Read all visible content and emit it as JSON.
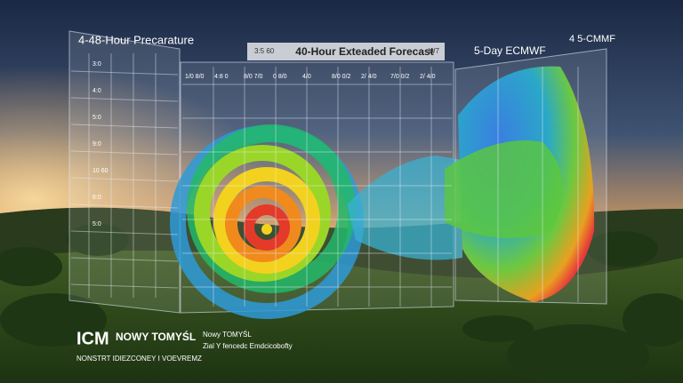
{
  "panels": [
    {
      "title": "4-48-Hour Precarature",
      "row_labels": [
        "3:0",
        "4:0",
        "5:0",
        "9:0",
        "10 60",
        "6:0",
        "5:0"
      ]
    },
    {
      "header_left": "3:5 60",
      "title": "40-Hour Exteaded Forecast",
      "header_right": "W7",
      "column_labels": [
        "1/0 8/0",
        "4:8 0",
        "8/0 7/0",
        "0 8/0",
        "4/0",
        "8/0 0/2",
        "2/ 4/0",
        "7/0 0/2",
        "2/ 4/0"
      ]
    },
    {
      "title": "5-Day ECMWF",
      "corner": "4 5-CMMF"
    }
  ],
  "footer": {
    "brand": "ICM",
    "place": "NOWY TOMYŚL",
    "tagline": "NONSTRT IDIEZCONEY I VOEVREMZ",
    "place_small": "Nowy TOMYŚL",
    "caption": "Zial Y fencedc Emdcicobofty"
  }
}
